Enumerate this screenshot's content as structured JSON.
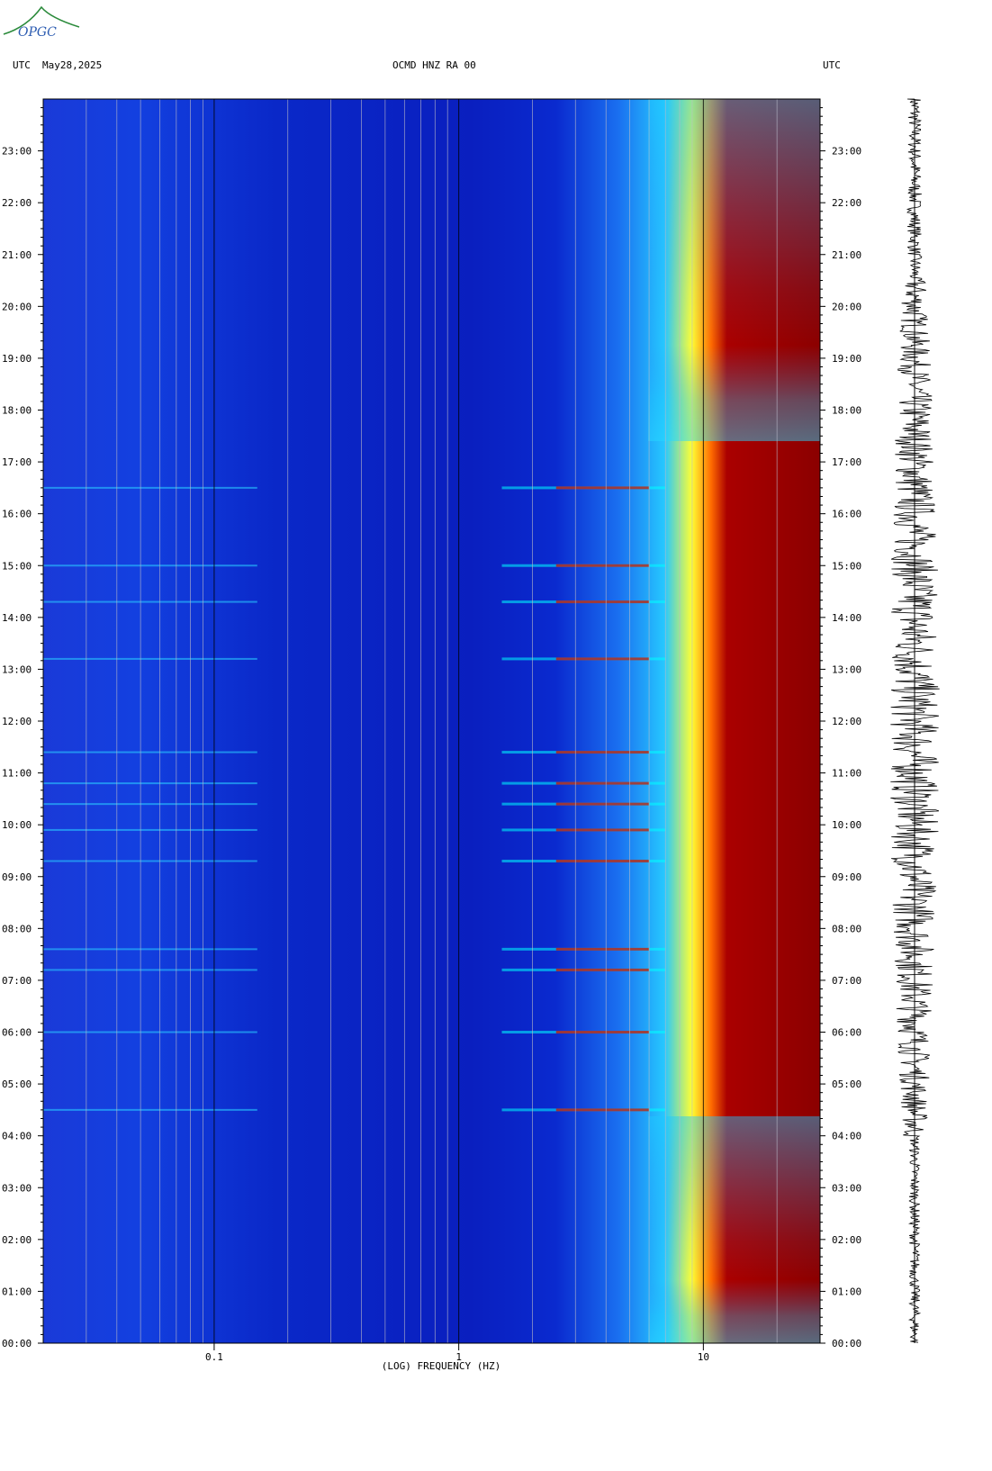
{
  "header": {
    "left_tz": "UTC",
    "date": "May28,2025",
    "station": "OCMD HNZ RA 00",
    "right_tz": "UTC"
  },
  "logo": {
    "text": "OPGC",
    "icon": "opgc-logo-icon"
  },
  "chart_data": {
    "type": "heatmap",
    "title": "OCMD HNZ RA 00",
    "xlabel": "(LOG) FREQUENCY (HZ)",
    "ylabel": "UTC",
    "x_scale": "log",
    "xlim": [
      0.02,
      30
    ],
    "x_ticks": [
      {
        "value": 0.1,
        "label": "0.1"
      },
      {
        "value": 1,
        "label": "1"
      },
      {
        "value": 10,
        "label": "10"
      }
    ],
    "y_ticks_hours": [
      "00:00",
      "01:00",
      "02:00",
      "03:00",
      "04:00",
      "05:00",
      "06:00",
      "07:00",
      "08:00",
      "09:00",
      "10:00",
      "11:00",
      "12:00",
      "13:00",
      "14:00",
      "15:00",
      "16:00",
      "17:00",
      "18:00",
      "19:00",
      "20:00",
      "21:00",
      "22:00",
      "23:00"
    ],
    "ylim_hours": [
      0,
      24
    ],
    "colormap": [
      "#00008b",
      "#0000ff",
      "#00bfff",
      "#00ffff",
      "#ffff00",
      "#ff8000",
      "#ff0000",
      "#8b0000"
    ],
    "grid": "vertical lines at decade sub-divisions",
    "events_hours": [
      4.5,
      6.0,
      7.2,
      7.6,
      9.3,
      9.9,
      10.4,
      10.8,
      11.4,
      13.2,
      14.3,
      15.0,
      16.5
    ],
    "seismogram": "vertical trace on right side"
  }
}
